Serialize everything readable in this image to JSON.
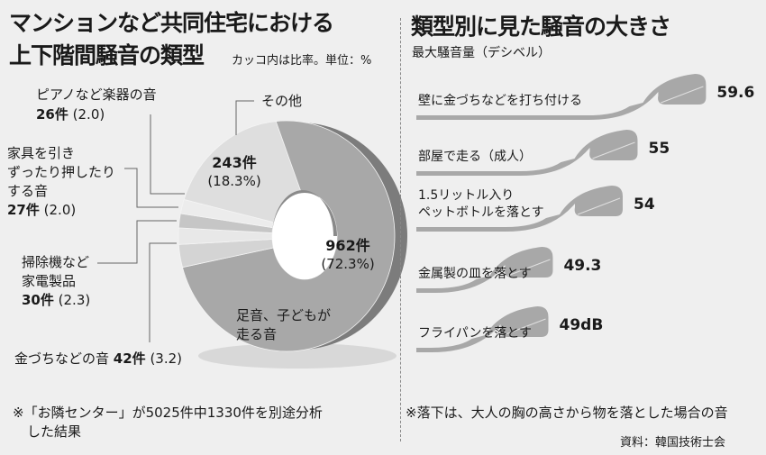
{
  "left": {
    "title_line1": "マンションなど共同住宅における",
    "title_line2": "上下階間騒音の類型",
    "unit_note": "カッコ内は比率。単位：%",
    "footnote_line1": "※「お隣センター」が5025件中1330件を別途分析",
    "footnote_line2": "した結果"
  },
  "right": {
    "title": "類型別に見た騒音の大きさ",
    "subtitle": "最大騒音量（デシベル）",
    "footnote": "※落下は、大人の胸の高さから物を落とした場合の音",
    "source": "資料：韓国技術士会"
  },
  "chart_data": [
    {
      "type": "pie",
      "style": "3d-donut",
      "slices": [
        {
          "label_line1": "足音、子どもが",
          "label_line2": "走る音",
          "count": "962件",
          "count_value": 962,
          "percent_text": "(72.3%)",
          "percent": 72.3,
          "color": "#a8a8a8"
        },
        {
          "label": "金づちなどの音",
          "count": "42件",
          "count_value": 42,
          "percent_text": "(3.2)",
          "percent": 3.2,
          "color": "#d4d4d4"
        },
        {
          "label_line1": "掃除機など",
          "label_line2": "家電製品",
          "count": "30件",
          "count_value": 30,
          "percent_text": "(2.3)",
          "percent": 2.3,
          "color": "#e8e8e8"
        },
        {
          "label_line1": "家具を引き",
          "label_line2": "ずったり押したり",
          "label_line3": "する音",
          "count": "27件",
          "count_value": 27,
          "percent_text": "(2.0)",
          "percent": 2.0,
          "color": "#c6c6c6"
        },
        {
          "label": "ピアノなど楽器の音",
          "count": "26件",
          "count_value": 26,
          "percent_text": "(2.0)",
          "percent": 2.0,
          "color": "#ececec"
        },
        {
          "label": "その他",
          "count": "243件",
          "count_value": 243,
          "percent_text": "(18.3%)",
          "percent": 18.3,
          "color": "#dedede"
        }
      ],
      "side_color": "#7c7c7c"
    },
    {
      "type": "bar",
      "style": "horn",
      "unit": "dB",
      "categories": [
        "壁に金づちなどを打ち付ける",
        "部屋で走る（成人）",
        "1.5リットル入り\nペットボトルを落とす",
        "金属製の皿を落とす",
        "フライパンを落とす"
      ],
      "values": [
        59.6,
        55,
        54,
        49.3,
        49
      ],
      "value_labels": [
        "59.6",
        "55",
        "54",
        "49.3",
        "49dB"
      ],
      "color": "#a8a8a8"
    }
  ]
}
